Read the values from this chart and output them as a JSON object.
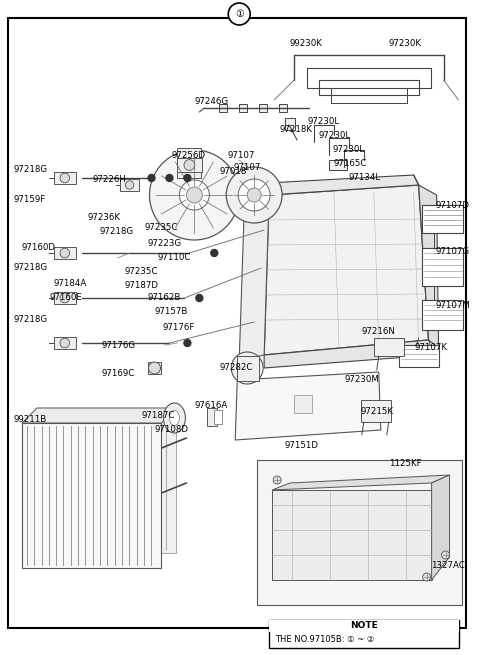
{
  "bg_color": "#ffffff",
  "border_color": "#000000",
  "text_color": "#000000",
  "line_color": "#555555",
  "circle_num": "①",
  "note_line1": "NOTE",
  "note_line2": "THE NO.97105B: ① ~ ②",
  "figsize": [
    4.8,
    6.55
  ],
  "dpi": 100
}
